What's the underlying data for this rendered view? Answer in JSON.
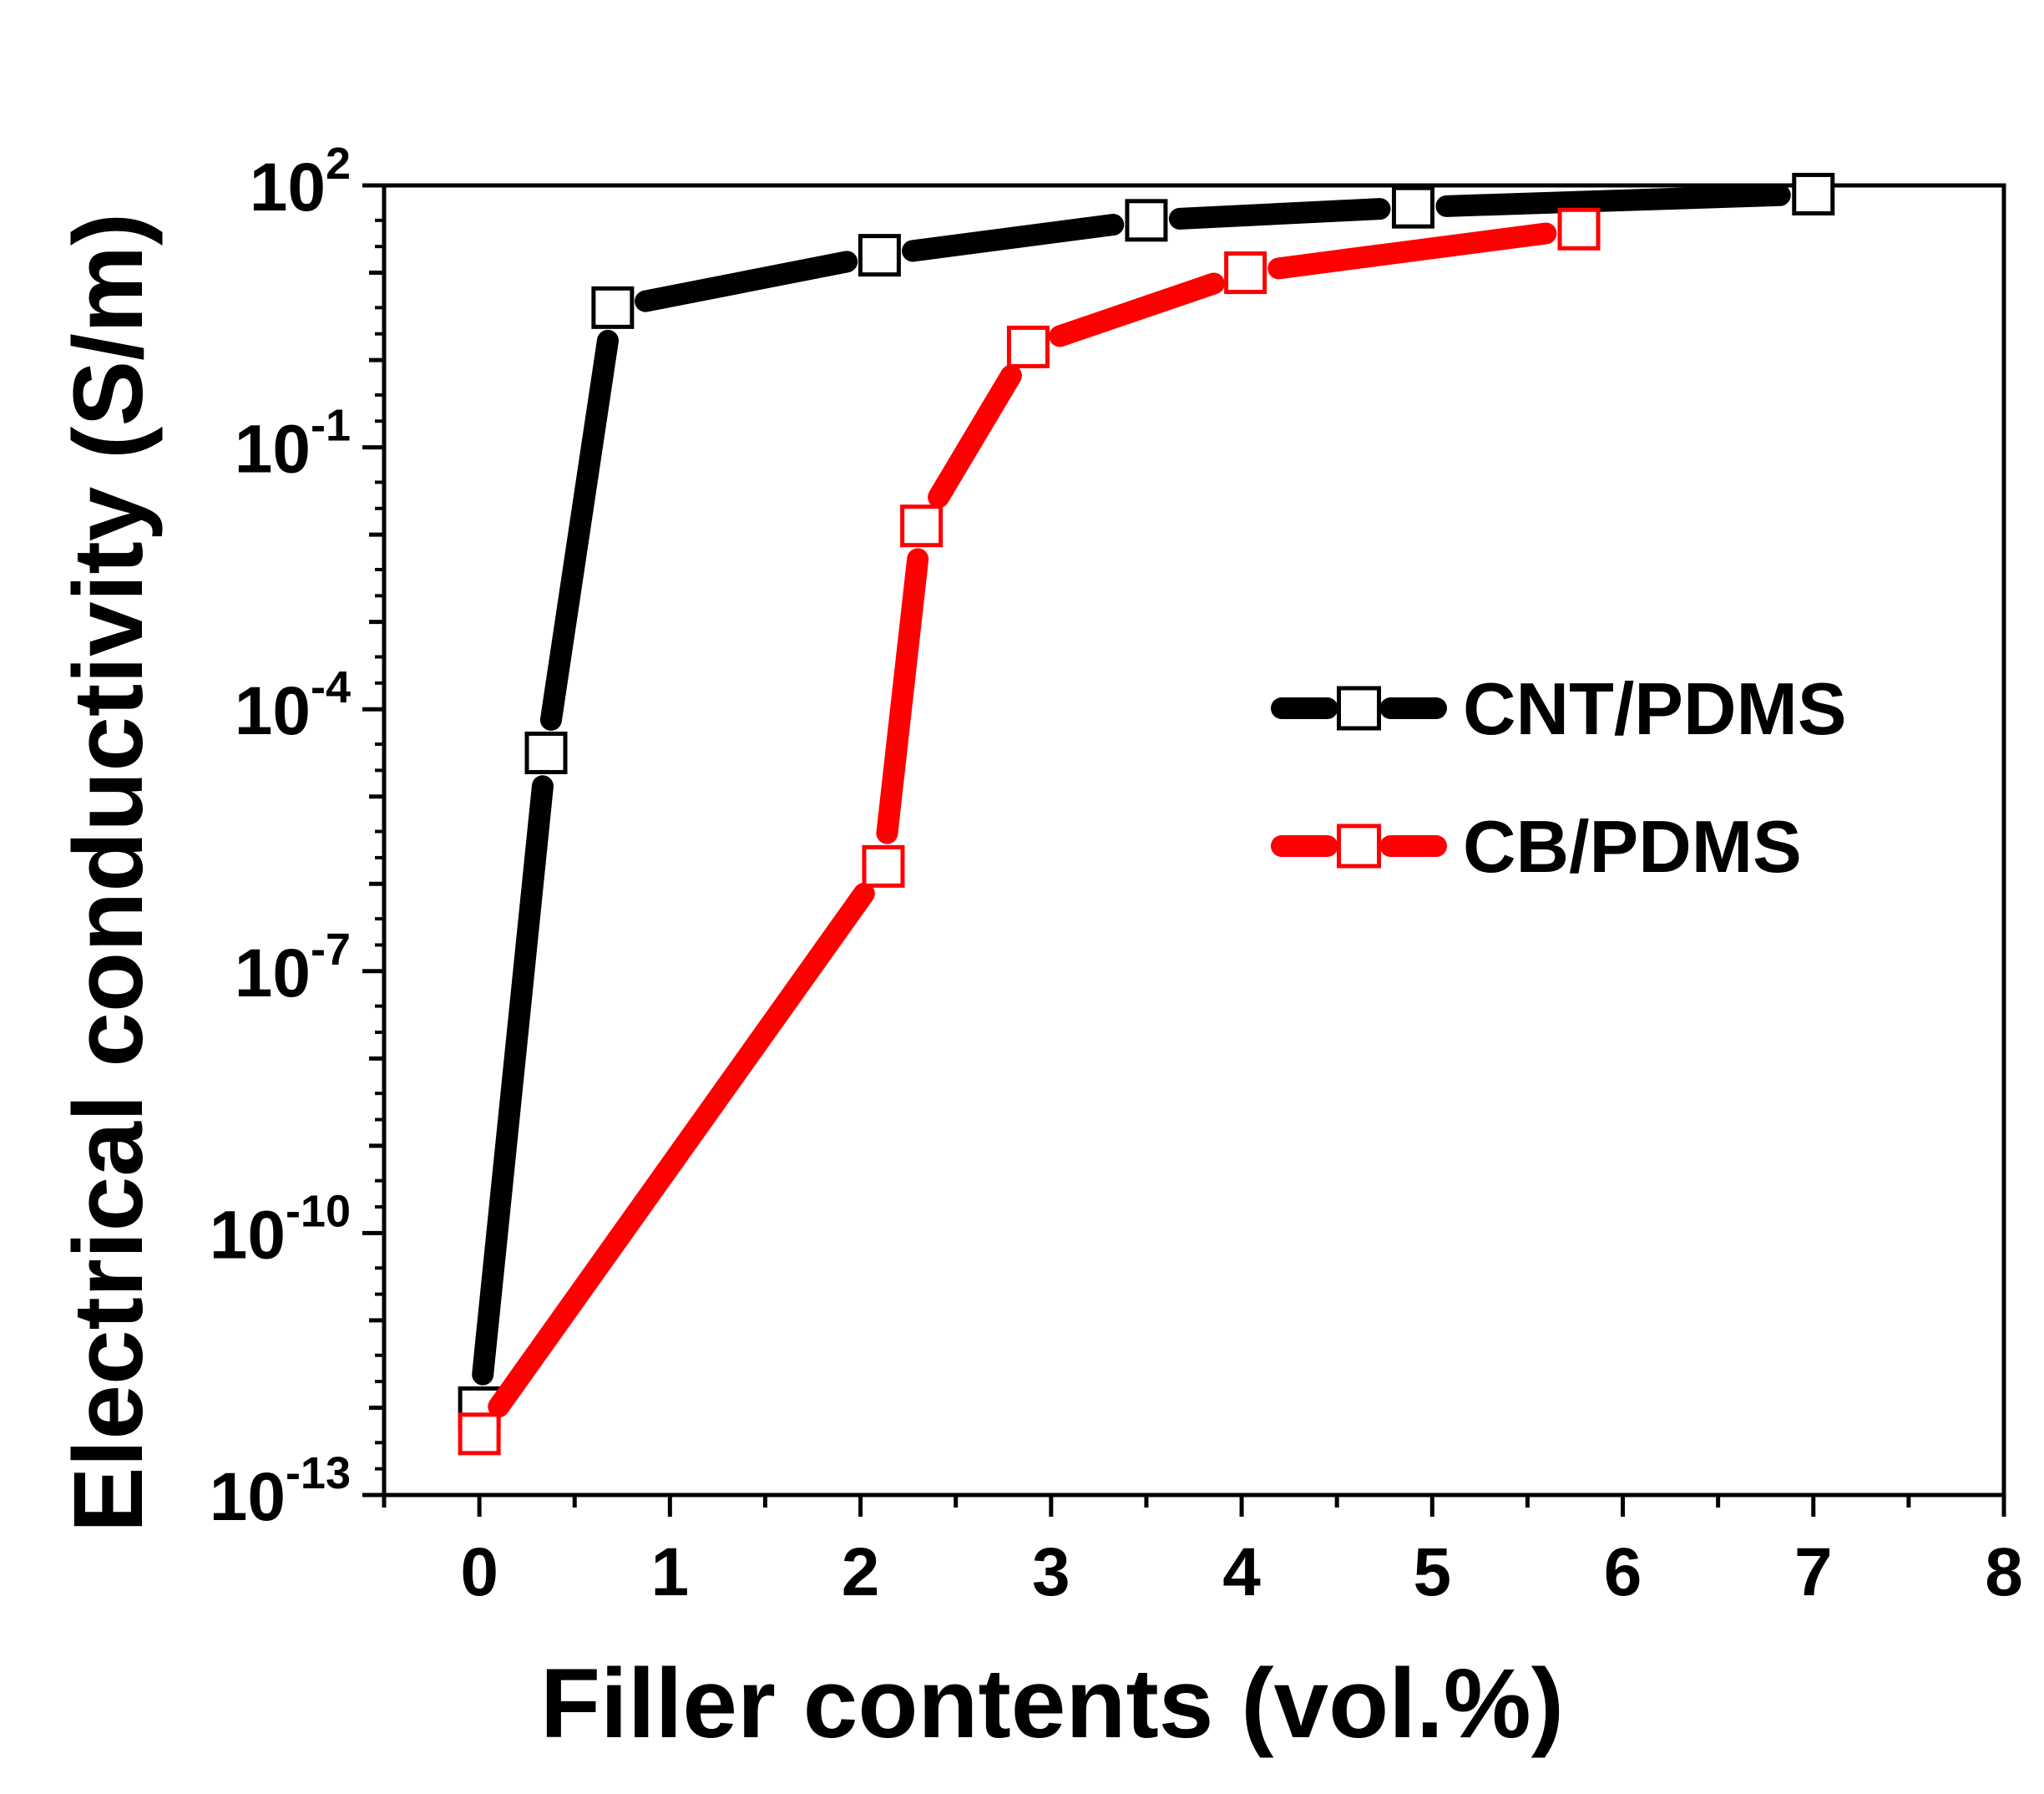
{
  "chart_data": {
    "type": "line",
    "title": "",
    "xlabel": "Filler contents (vol.%)",
    "ylabel": "Electrical conductivity (S/m)",
    "xlim": [
      -0.5,
      8
    ],
    "ylim_exp": [
      -13,
      2
    ],
    "y_scale": "log",
    "x_ticks": [
      {
        "value": 0,
        "label": "0"
      },
      {
        "value": 1,
        "label": "1"
      },
      {
        "value": 2,
        "label": "2"
      },
      {
        "value": 3,
        "label": "3"
      },
      {
        "value": 4,
        "label": "4"
      },
      {
        "value": 5,
        "label": "5"
      },
      {
        "value": 6,
        "label": "6"
      },
      {
        "value": 7,
        "label": "7"
      },
      {
        "value": 8,
        "label": "8"
      }
    ],
    "y_ticks": [
      {
        "exp": 2,
        "base": "10",
        "sup": "2"
      },
      {
        "exp": -1,
        "base": "10",
        "sup": "-1"
      },
      {
        "exp": -4,
        "base": "10",
        "sup": "-4"
      },
      {
        "exp": -7,
        "base": "10",
        "sup": "-7"
      },
      {
        "exp": -10,
        "base": "10",
        "sup": "-10"
      },
      {
        "exp": -13,
        "base": "10",
        "sup": "-13"
      }
    ],
    "legend_position": "right-middle",
    "series": [
      {
        "name": "CNT/PDMS",
        "color": "#000000",
        "marker": "open-square",
        "x": [
          0,
          0.35,
          0.7,
          2.1,
          3.5,
          4.9,
          7.0
        ],
        "log10_y": [
          -12.0,
          -4.5,
          0.6,
          1.2,
          1.6,
          1.75,
          1.9
        ]
      },
      {
        "name": "CB/PDMS",
        "color": "#ff0000",
        "marker": "open-square",
        "x": [
          0,
          2.12,
          2.32,
          2.88,
          4.02,
          5.77
        ],
        "log10_y": [
          -12.3,
          -5.8,
          -1.9,
          0.15,
          1.0,
          1.5
        ]
      }
    ]
  }
}
